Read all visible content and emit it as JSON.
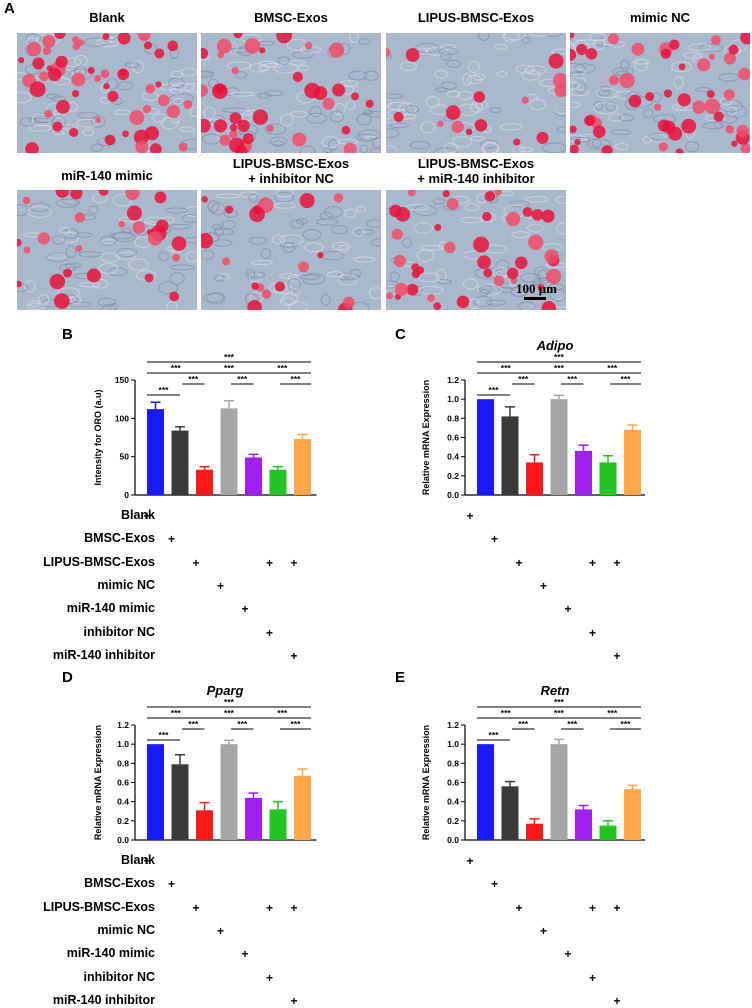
{
  "panel_letters": {
    "A": "A",
    "B": "B",
    "C": "C",
    "D": "D",
    "E": "E"
  },
  "micrographs": [
    {
      "title": "Blank"
    },
    {
      "title": "BMSC-Exos"
    },
    {
      "title": "LIPUS-BMSC-Exos"
    },
    {
      "title": "mimic NC"
    },
    {
      "title": "miR-140 mimic"
    },
    {
      "title": "LIPUS-BMSC-Exos\n+ inhibitor NC"
    },
    {
      "title": "LIPUS-BMSC-Exos\n+ miR-140 inhibitor"
    }
  ],
  "micrograph_density": [
    0.85,
    0.6,
    0.25,
    0.8,
    0.45,
    0.3,
    0.65
  ],
  "scale_bar": "100 μm",
  "treatment_rows": [
    "Blank",
    "BMSC-Exos",
    "LIPUS-BMSC-Exos",
    "mimic NC",
    "miR-140 mimic",
    "inhibitor NC",
    "miR-140 inhibitor"
  ],
  "treatment_matrix": [
    [
      1,
      0,
      0,
      0,
      0,
      0,
      0
    ],
    [
      0,
      1,
      0,
      0,
      0,
      0,
      0
    ],
    [
      0,
      0,
      1,
      0,
      0,
      1,
      1
    ],
    [
      0,
      0,
      0,
      1,
      0,
      0,
      0
    ],
    [
      0,
      0,
      0,
      0,
      1,
      0,
      0
    ],
    [
      0,
      0,
      0,
      0,
      0,
      1,
      0
    ],
    [
      0,
      0,
      0,
      0,
      0,
      0,
      1
    ]
  ],
  "plus_symbol": "+",
  "colors": [
    "#1a1aff",
    "#3a3a3a",
    "#ff1a1a",
    "#a6a6a6",
    "#a020f0",
    "#22c322",
    "#ffa54a"
  ],
  "sig_label": "***",
  "chart_data": [
    {
      "id": "B",
      "type": "bar",
      "title": "",
      "ylabel": "Intensity for ORO (a.u)",
      "ylim": [
        0,
        150
      ],
      "yticks": [
        0,
        50,
        100,
        150
      ],
      "categories": [
        "Blank",
        "BMSC-Exos",
        "LIPUS-BMSC-Exos",
        "mimic NC",
        "miR-140 mimic",
        "LIPUS-BMSC-Exos + inhibitor NC",
        "LIPUS-BMSC-Exos + miR-140 inhibitor"
      ],
      "values": [
        112,
        84,
        33,
        113,
        49,
        33,
        73
      ],
      "errors": [
        9,
        5,
        4,
        10,
        4,
        4,
        6
      ],
      "significance": [
        [
          0,
          1
        ],
        [
          1,
          2
        ],
        [
          0,
          2
        ],
        [
          2,
          4
        ],
        [
          3,
          4
        ],
        [
          4,
          6
        ],
        [
          5,
          6
        ],
        [
          0,
          6
        ]
      ]
    },
    {
      "id": "C",
      "type": "bar",
      "title": "Adipo",
      "ylabel": "Relative mRNA Expression",
      "ylim": [
        0,
        1.2
      ],
      "yticks": [
        0,
        0.2,
        0.4,
        0.6,
        0.8,
        1.0,
        1.2
      ],
      "categories": [
        "Blank",
        "BMSC-Exos",
        "LIPUS-BMSC-Exos",
        "mimic NC",
        "miR-140 mimic",
        "LIPUS-BMSC-Exos + inhibitor NC",
        "LIPUS-BMSC-Exos + miR-140 inhibitor"
      ],
      "values": [
        1.0,
        0.82,
        0.34,
        1.0,
        0.46,
        0.34,
        0.68
      ],
      "errors": [
        0,
        0.1,
        0.08,
        0.04,
        0.06,
        0.07,
        0.05
      ],
      "significance": [
        [
          0,
          1
        ],
        [
          1,
          2
        ],
        [
          0,
          2
        ],
        [
          2,
          4
        ],
        [
          3,
          4
        ],
        [
          4,
          6
        ],
        [
          5,
          6
        ],
        [
          0,
          6
        ]
      ]
    },
    {
      "id": "D",
      "type": "bar",
      "title": "Pparg",
      "ylabel": "Relative mRNA Expression",
      "ylim": [
        0,
        1.2
      ],
      "yticks": [
        0,
        0.2,
        0.4,
        0.6,
        0.8,
        1.0,
        1.2
      ],
      "categories": [
        "Blank",
        "BMSC-Exos",
        "LIPUS-BMSC-Exos",
        "mimic NC",
        "miR-140 mimic",
        "LIPUS-BMSC-Exos + inhibitor NC",
        "LIPUS-BMSC-Exos + miR-140 inhibitor"
      ],
      "values": [
        1.0,
        0.79,
        0.31,
        1.0,
        0.44,
        0.32,
        0.67
      ],
      "errors": [
        0,
        0.1,
        0.08,
        0.04,
        0.05,
        0.08,
        0.07
      ],
      "significance": [
        [
          0,
          1
        ],
        [
          1,
          2
        ],
        [
          0,
          2
        ],
        [
          2,
          4
        ],
        [
          3,
          4
        ],
        [
          4,
          6
        ],
        [
          5,
          6
        ],
        [
          0,
          6
        ]
      ]
    },
    {
      "id": "E",
      "type": "bar",
      "title": "Retn",
      "ylabel": "Relative mRNA Expression",
      "ylim": [
        0,
        1.2
      ],
      "yticks": [
        0,
        0.2,
        0.4,
        0.6,
        0.8,
        1.0,
        1.2
      ],
      "categories": [
        "Blank",
        "BMSC-Exos",
        "LIPUS-BMSC-Exos",
        "mimic NC",
        "miR-140 mimic",
        "LIPUS-BMSC-Exos + inhibitor NC",
        "LIPUS-BMSC-Exos + miR-140 inhibitor"
      ],
      "values": [
        1.0,
        0.56,
        0.17,
        1.0,
        0.32,
        0.15,
        0.53
      ],
      "errors": [
        0,
        0.05,
        0.05,
        0.05,
        0.04,
        0.05,
        0.04
      ],
      "significance": [
        [
          0,
          1
        ],
        [
          1,
          2
        ],
        [
          0,
          2
        ],
        [
          2,
          4
        ],
        [
          3,
          4
        ],
        [
          4,
          6
        ],
        [
          5,
          6
        ],
        [
          0,
          6
        ]
      ]
    }
  ]
}
